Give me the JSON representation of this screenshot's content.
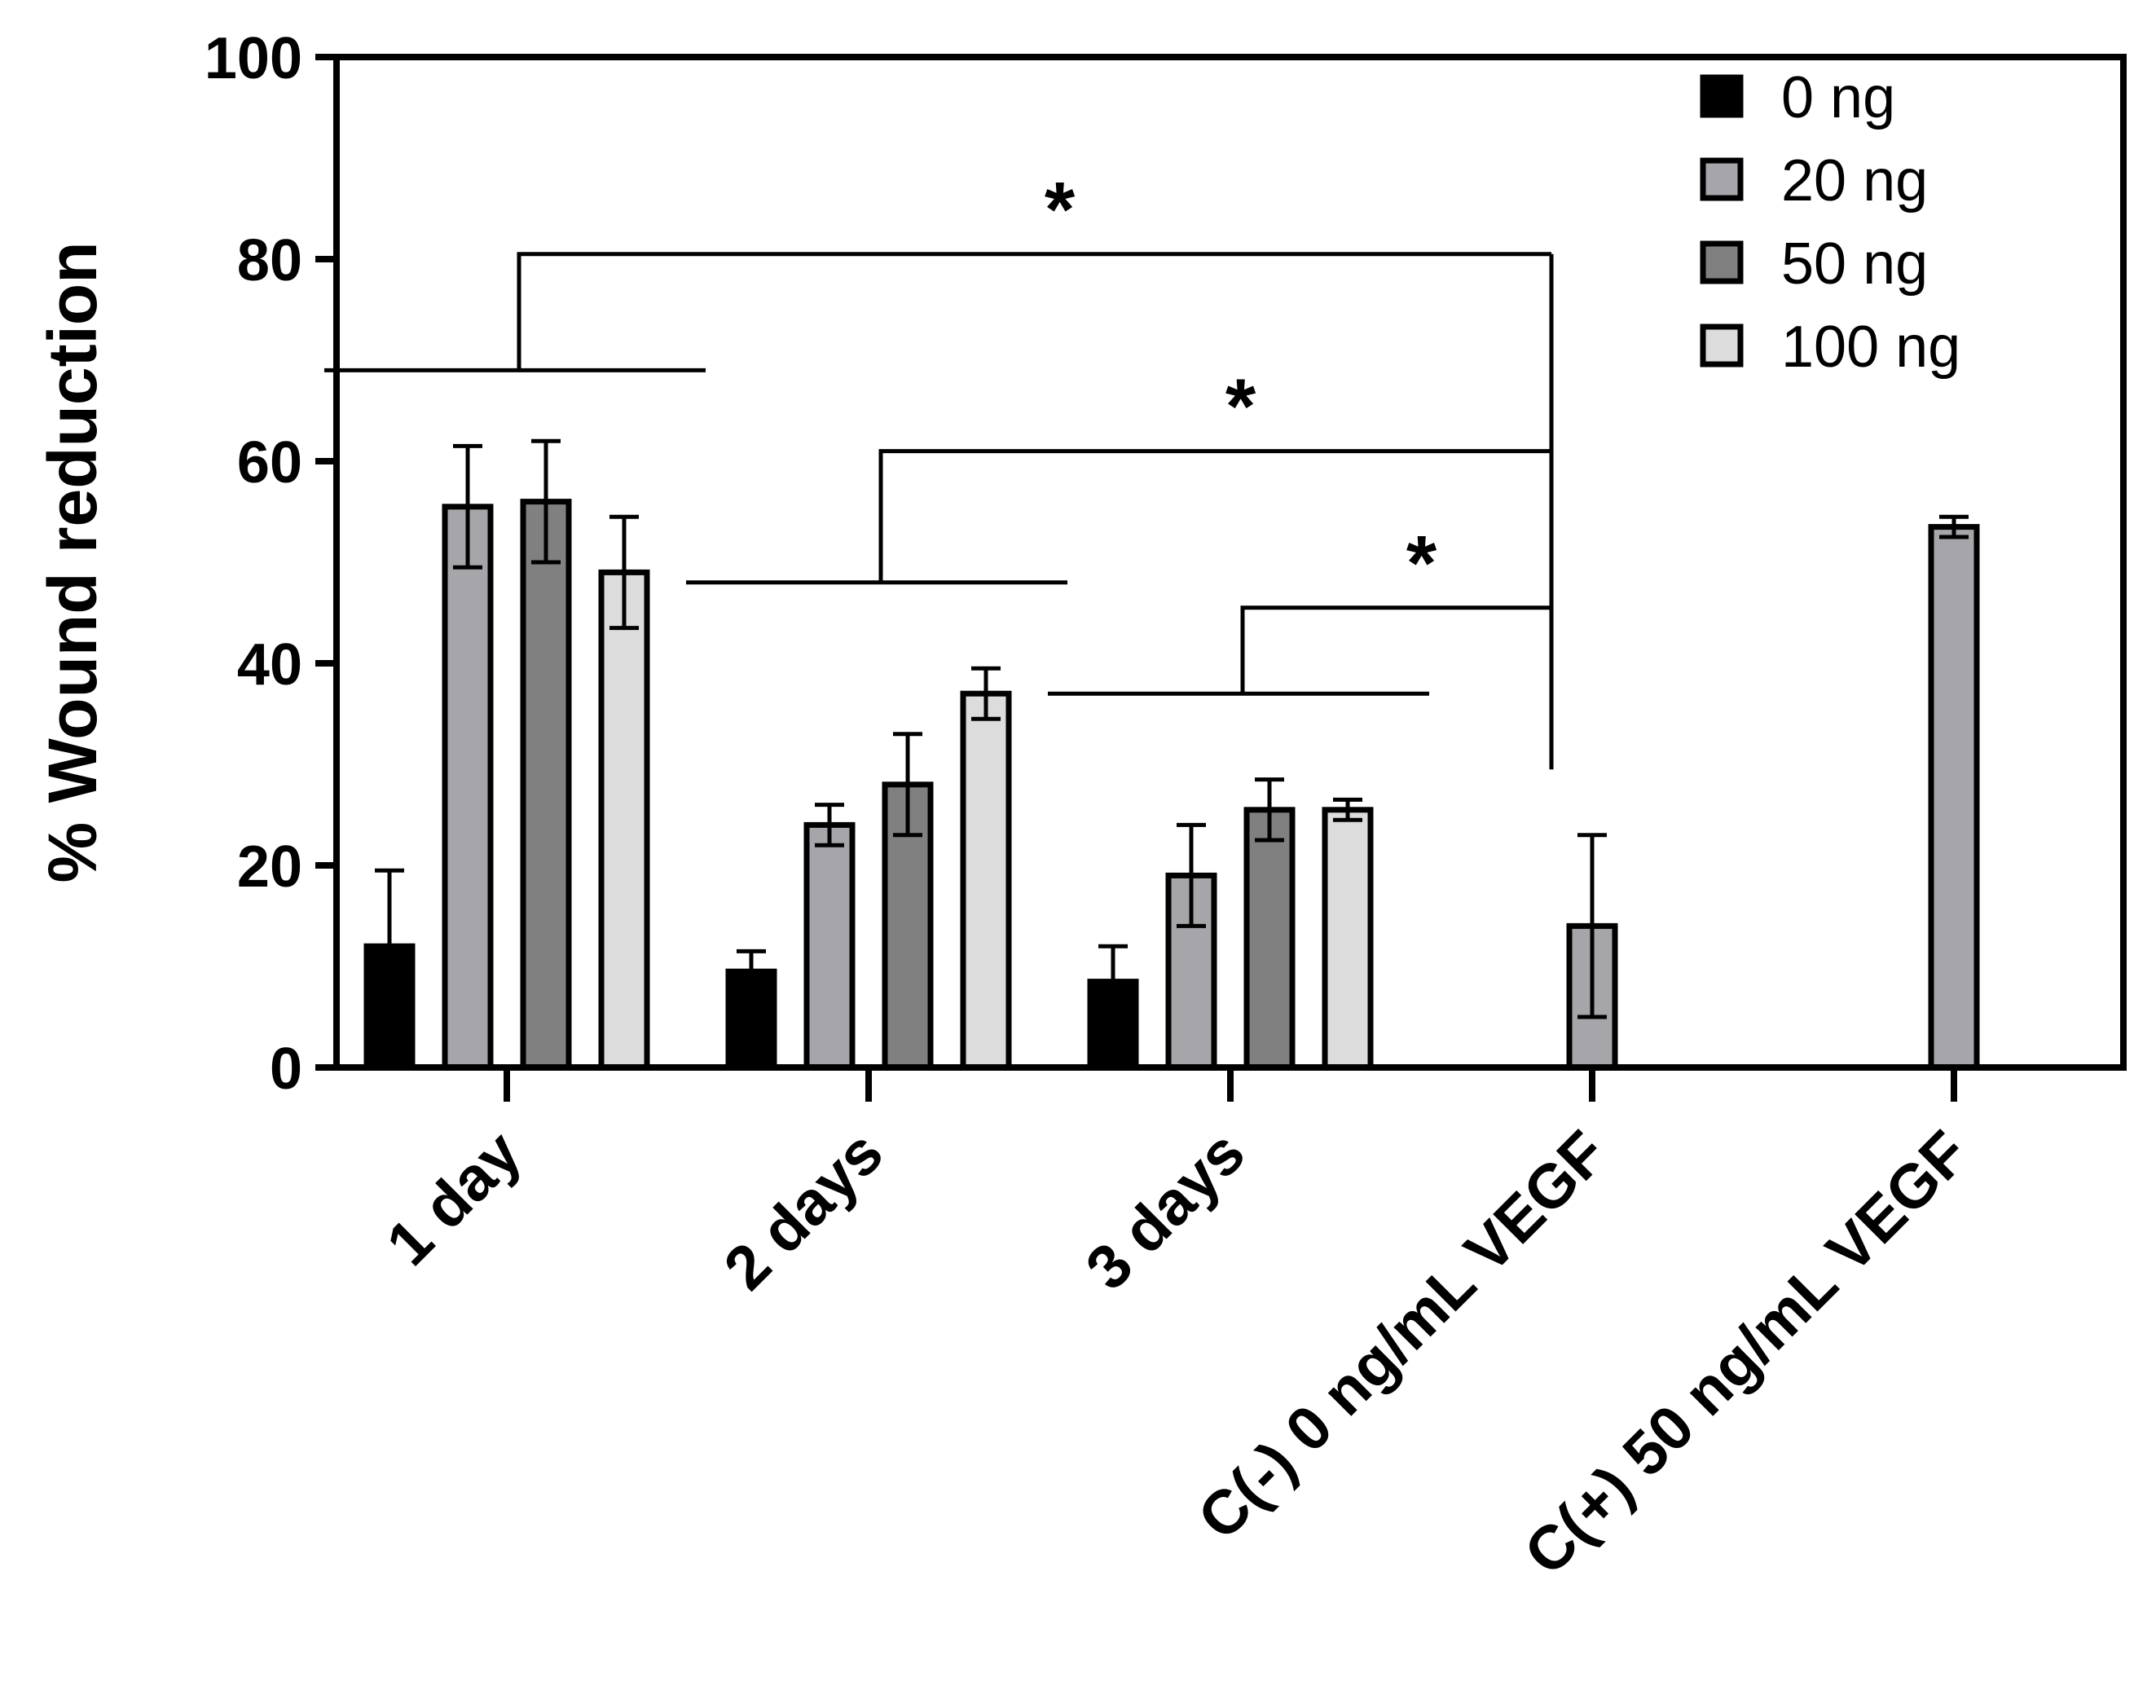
{
  "chart_data": {
    "type": "bar",
    "title": "",
    "xlabel": "",
    "ylabel": "% Wound reduction",
    "ylim": [
      0,
      100
    ],
    "yticks": [
      0,
      20,
      40,
      60,
      80,
      100
    ],
    "grid": false,
    "legend_position": "top-right",
    "categories": [
      "1 day",
      "2 days",
      "3 days",
      "C(-) 0 ng/mL VEGF",
      "C(+) 50 ng/mL VEGF"
    ],
    "series": [
      {
        "name": "0 ng",
        "color": "#000000",
        "values": [
          12,
          9.5,
          8.5,
          null,
          null
        ],
        "errors": [
          7.5,
          2,
          3.5,
          null,
          null
        ]
      },
      {
        "name": "20 ng",
        "color": "#a6a6aa",
        "values": [
          55.5,
          24,
          19,
          14,
          53.5
        ],
        "errors": [
          6,
          2,
          5,
          9,
          1
        ]
      },
      {
        "name": "50 ng",
        "color": "#808080",
        "values": [
          56,
          28,
          25.5,
          null,
          null
        ],
        "errors": [
          6,
          5,
          3,
          null,
          null
        ]
      },
      {
        "name": "100 ng",
        "color": "#dcdcdc",
        "values": [
          49,
          37,
          25.5,
          null,
          null
        ],
        "errors": [
          5.5,
          2.5,
          1,
          null,
          null
        ]
      }
    ],
    "annotations": [
      {
        "label": "*",
        "from": "1 day",
        "to": "C(-) 0 ng/mL VEGF"
      },
      {
        "label": "*",
        "from": "2 days",
        "to": "C(-) 0 ng/mL VEGF"
      },
      {
        "label": "*",
        "from": "3 days",
        "to": "C(-) 0 ng/mL VEGF"
      }
    ]
  }
}
